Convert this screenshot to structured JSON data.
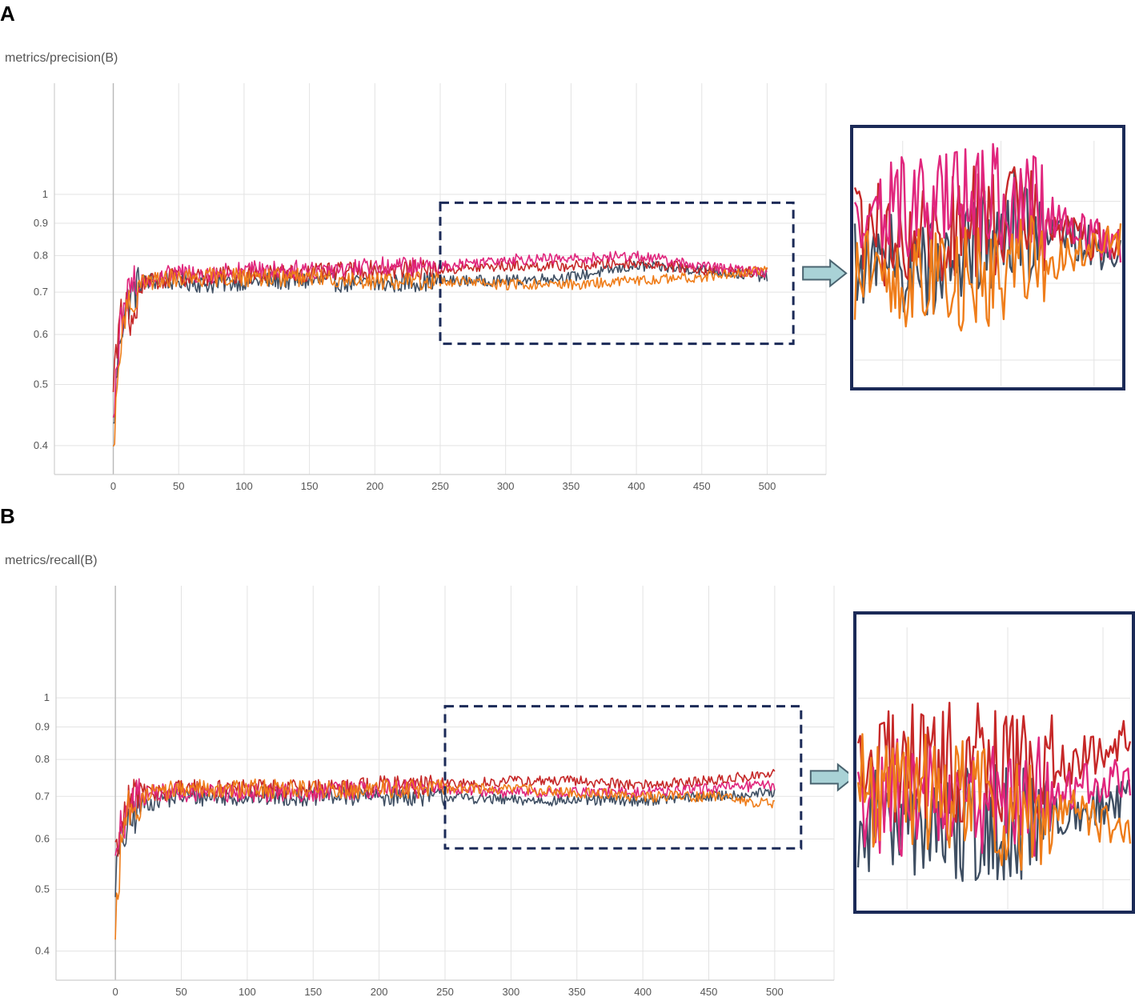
{
  "panels": [
    {
      "letter": "A",
      "title": "metrics/precision(B)"
    },
    {
      "letter": "B",
      "title": "metrics/recall(B)"
    }
  ],
  "chart_data": [
    {
      "type": "line",
      "title": "metrics/precision(B)",
      "xlabel": "",
      "ylabel": "",
      "x_ticks": [
        0,
        50,
        100,
        150,
        200,
        250,
        300,
        350,
        400,
        450,
        500
      ],
      "y_ticks": [
        0.4,
        0.5,
        0.6,
        0.7,
        0.8,
        0.9,
        1
      ],
      "y_scale": "log",
      "xlim": [
        -45,
        545
      ],
      "ylim": [
        0.36,
        1.5
      ],
      "grid": true,
      "legend": "none",
      "series": [
        {
          "color": "#3f4f63",
          "x": [
            0,
            5,
            10,
            15,
            20,
            30,
            50,
            75,
            100,
            150,
            200,
            250,
            300,
            350,
            400,
            450,
            500
          ],
          "y": [
            0.42,
            0.6,
            0.67,
            0.7,
            0.72,
            0.73,
            0.73,
            0.72,
            0.73,
            0.73,
            0.72,
            0.73,
            0.73,
            0.74,
            0.77,
            0.76,
            0.74
          ]
        },
        {
          "color": "#c62828",
          "x": [
            0,
            5,
            10,
            15,
            20,
            30,
            50,
            75,
            100,
            150,
            200,
            250,
            300,
            350,
            400,
            450,
            500
          ],
          "y": [
            0.5,
            0.62,
            0.68,
            0.6,
            0.71,
            0.73,
            0.74,
            0.74,
            0.75,
            0.75,
            0.76,
            0.76,
            0.77,
            0.77,
            0.78,
            0.76,
            0.75
          ]
        },
        {
          "color": "#e0267d",
          "x": [
            0,
            5,
            10,
            15,
            20,
            30,
            50,
            75,
            100,
            150,
            200,
            250,
            300,
            350,
            400,
            450,
            500
          ],
          "y": [
            0.45,
            0.6,
            0.68,
            0.71,
            0.73,
            0.74,
            0.75,
            0.75,
            0.76,
            0.76,
            0.77,
            0.77,
            0.79,
            0.79,
            0.8,
            0.77,
            0.75
          ]
        },
        {
          "color": "#ef7d1a",
          "x": [
            0,
            5,
            10,
            15,
            20,
            30,
            50,
            75,
            100,
            150,
            200,
            250,
            300,
            350,
            400,
            450,
            500
          ],
          "y": [
            0.38,
            0.58,
            0.66,
            0.7,
            0.72,
            0.73,
            0.74,
            0.74,
            0.74,
            0.74,
            0.73,
            0.73,
            0.72,
            0.72,
            0.73,
            0.74,
            0.76
          ]
        }
      ]
    },
    {
      "type": "line",
      "title": "metrics/recall(B)",
      "xlabel": "",
      "ylabel": "",
      "x_ticks": [
        0,
        50,
        100,
        150,
        200,
        250,
        300,
        350,
        400,
        450,
        500
      ],
      "y_ticks": [
        0.4,
        0.5,
        0.6,
        0.7,
        0.8,
        0.9,
        1
      ],
      "y_scale": "log",
      "xlim": [
        -45,
        545
      ],
      "ylim": [
        0.36,
        1.5
      ],
      "grid": true,
      "legend": "none",
      "series": [
        {
          "color": "#3f4f63",
          "x": [
            0,
            5,
            10,
            15,
            20,
            30,
            50,
            75,
            100,
            150,
            200,
            250,
            300,
            350,
            400,
            450,
            500
          ],
          "y": [
            0.52,
            0.6,
            0.62,
            0.66,
            0.68,
            0.69,
            0.7,
            0.7,
            0.7,
            0.7,
            0.7,
            0.7,
            0.69,
            0.69,
            0.69,
            0.7,
            0.71
          ]
        },
        {
          "color": "#c62828",
          "x": [
            0,
            5,
            10,
            15,
            20,
            30,
            50,
            75,
            100,
            150,
            200,
            250,
            300,
            350,
            400,
            450,
            500
          ],
          "y": [
            0.55,
            0.62,
            0.68,
            0.72,
            0.71,
            0.71,
            0.72,
            0.72,
            0.72,
            0.72,
            0.73,
            0.73,
            0.74,
            0.74,
            0.73,
            0.74,
            0.76
          ]
        },
        {
          "color": "#e0267d",
          "x": [
            0,
            5,
            10,
            15,
            20,
            30,
            50,
            75,
            100,
            150,
            200,
            250,
            300,
            350,
            400,
            450,
            500
          ],
          "y": [
            0.56,
            0.63,
            0.67,
            0.69,
            0.7,
            0.71,
            0.71,
            0.71,
            0.71,
            0.71,
            0.72,
            0.72,
            0.71,
            0.71,
            0.71,
            0.72,
            0.73
          ]
        },
        {
          "color": "#ef7d1a",
          "x": [
            0,
            5,
            10,
            15,
            20,
            30,
            50,
            75,
            100,
            150,
            200,
            250,
            300,
            350,
            400,
            450,
            500
          ],
          "y": [
            0.42,
            0.62,
            0.67,
            0.69,
            0.7,
            0.71,
            0.72,
            0.72,
            0.72,
            0.72,
            0.72,
            0.72,
            0.72,
            0.71,
            0.7,
            0.7,
            0.68
          ]
        }
      ]
    }
  ],
  "zoom_region": {
    "x_range": [
      250,
      520
    ],
    "y_range": [
      0.58,
      0.97
    ]
  },
  "colors": {
    "box": "#1b2a57",
    "arrow_fill": "#a9d2d6",
    "arrow_stroke": "#4a6470",
    "grid": "#e3e3e3"
  }
}
